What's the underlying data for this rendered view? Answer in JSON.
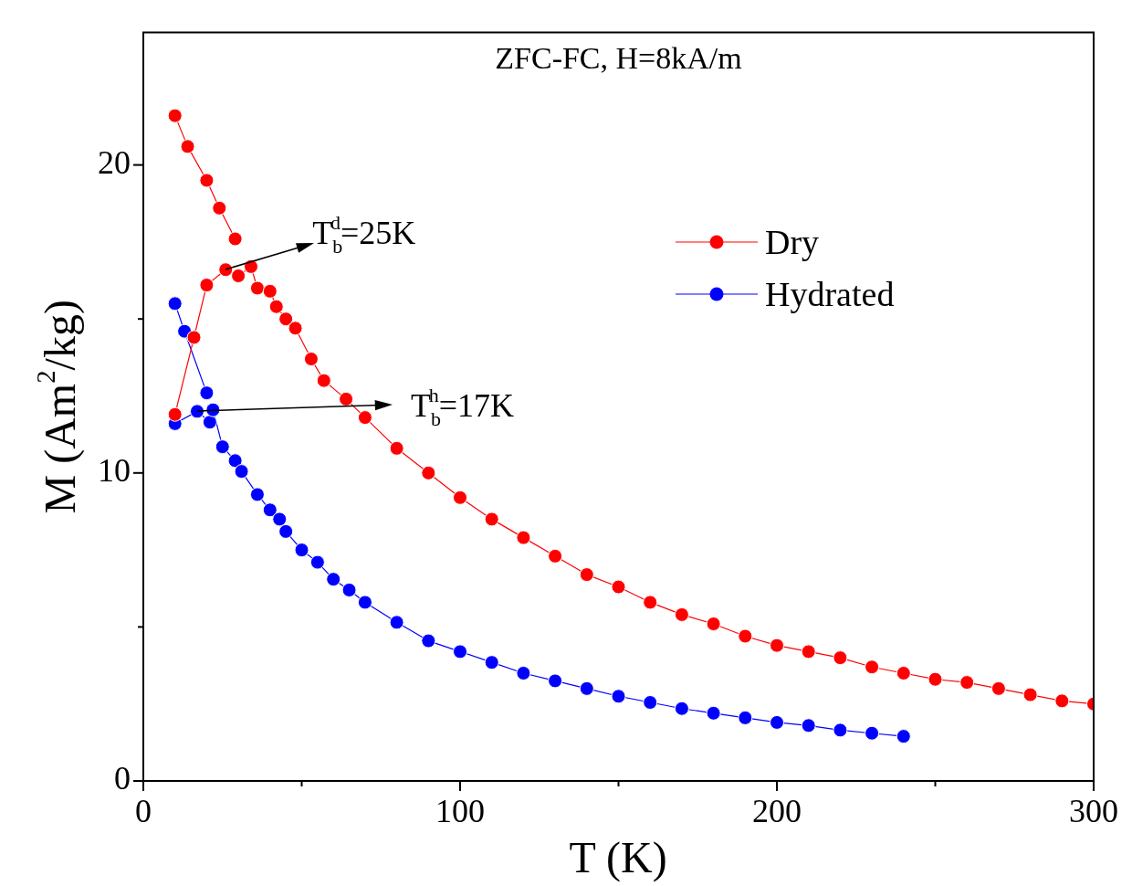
{
  "chart_data": {
    "type": "line",
    "title": "ZFC-FC, H=8kA/m",
    "xlabel": "T (K)",
    "ylabel": "M (Am$^{2}$/kg)",
    "xlim": [
      0,
      300
    ],
    "xticks": [
      0,
      {
        "value": 50,
        "label": null
      },
      100,
      {
        "value": 150,
        "label": null
      },
      200,
      {
        "value": 250,
        "label": null
      },
      300
    ],
    "ylim": [
      0,
      24.3
    ],
    "yticks": [
      0,
      {
        "value": 5,
        "label": null
      },
      10,
      {
        "value": 15,
        "label": null
      },
      20
    ],
    "grid": false,
    "legend": "right",
    "marker": "circle",
    "line_style": "solid",
    "series": [
      {
        "name": "Dry",
        "color": "#ff0000",
        "x": [
          10,
          16,
          20,
          26,
          30,
          34,
          36,
          40,
          42,
          45,
          48,
          53,
          57,
          64,
          70,
          80,
          90,
          100,
          110,
          120,
          130,
          140,
          150,
          160,
          170,
          180,
          190,
          200,
          210,
          220,
          230,
          240,
          250,
          260,
          270,
          280,
          290,
          300
        ],
        "values": [
          11.9,
          14.4,
          16.1,
          16.6,
          16.4,
          16.7,
          16.0,
          15.9,
          15.4,
          15.0,
          14.7,
          13.7,
          13.0,
          12.4,
          11.8,
          10.8,
          10.0,
          9.2,
          8.5,
          7.9,
          7.3,
          6.7,
          6.3,
          5.8,
          5.4,
          5.1,
          4.7,
          4.4,
          4.2,
          4.0,
          3.7,
          3.5,
          3.3,
          3.2,
          3.0,
          2.8,
          2.6,
          2.5
        ]
      },
      {
        "color": "#ff0000",
        "x": [
          10,
          14,
          20,
          24,
          29
        ],
        "values": [
          21.6,
          20.6,
          19.5,
          18.6,
          17.6
        ]
      },
      {
        "name": "Hydrated",
        "color": "#0000ff",
        "x": [
          10,
          17,
          21,
          22,
          25,
          29,
          31,
          36,
          40,
          43,
          45,
          50,
          55,
          60,
          65,
          70,
          80,
          90,
          100,
          110,
          120,
          130,
          140,
          150,
          160,
          170,
          180,
          190,
          200,
          210,
          220,
          230,
          240
        ],
        "values": [
          11.6,
          12.0,
          11.65,
          12.05,
          10.85,
          10.4,
          10.05,
          9.3,
          8.8,
          8.5,
          8.1,
          7.5,
          7.1,
          6.55,
          6.2,
          5.8,
          5.15,
          4.55,
          4.2,
          3.85,
          3.5,
          3.25,
          3.0,
          2.75,
          2.55,
          2.35,
          2.2,
          2.05,
          1.9,
          1.8,
          1.65,
          1.55,
          1.45
        ]
      },
      {
        "color": "#0000ff",
        "x": [
          10,
          13,
          20
        ],
        "values": [
          15.5,
          14.6,
          12.6
        ]
      }
    ],
    "annotations": [
      {
        "text": "T$_{b}$$^{d}$=25K",
        "x": 26,
        "y": 16.6
      },
      {
        "text": "T$_{b}$$^{h}$=17K",
        "x": 17,
        "y": 12.0
      }
    ]
  }
}
